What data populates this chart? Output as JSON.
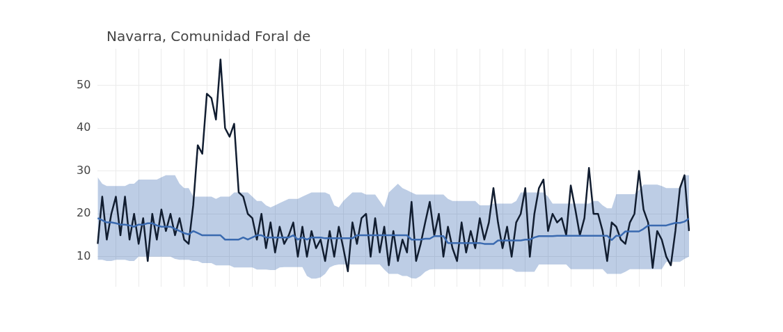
{
  "chart_data": {
    "type": "line",
    "title": "Navarra, Comunidad Foral de",
    "categories": [
      null,
      null,
      null,
      null,
      null,
      null,
      null,
      null,
      null,
      null,
      null,
      null,
      null,
      null,
      null,
      null,
      null,
      null,
      null,
      null,
      null,
      null,
      null,
      null,
      null,
      null,
      null,
      null,
      null,
      null,
      null,
      null,
      null,
      null,
      null,
      null,
      null,
      null,
      null,
      null,
      null,
      null,
      null,
      null,
      null,
      null,
      null,
      null,
      null,
      null,
      null,
      null,
      null,
      null,
      null,
      null,
      null,
      null,
      null,
      null,
      null,
      null,
      null,
      null,
      null,
      null,
      null,
      null,
      null,
      null,
      null,
      null,
      null,
      null,
      null,
      null,
      null,
      null,
      null,
      null,
      null,
      null,
      null,
      null,
      null,
      null,
      null,
      null,
      null,
      null,
      null,
      null,
      null,
      null,
      null,
      null,
      null,
      null,
      null,
      null,
      null,
      null,
      null,
      null,
      null,
      null,
      null,
      null,
      null,
      null,
      null,
      null,
      null,
      null,
      null,
      null,
      null,
      null,
      null,
      null,
      null,
      null,
      null,
      null,
      null,
      null,
      null,
      null,
      null,
      null,
      null
    ],
    "series": [
      {
        "color": "#111d30",
        "values": [
          13,
          24,
          14,
          20,
          24,
          15,
          24,
          14,
          20,
          13,
          19,
          9,
          20,
          14,
          21,
          16,
          20,
          15,
          19,
          14,
          13,
          22,
          36,
          34,
          48,
          47,
          42,
          56,
          40,
          38,
          41,
          25,
          24,
          20,
          19,
          14,
          20,
          12,
          18,
          11,
          17,
          13,
          15,
          18,
          10,
          17,
          10,
          16,
          12,
          14,
          9,
          16,
          10,
          17,
          12,
          6.6,
          18,
          13,
          19,
          20,
          10,
          19,
          11,
          17,
          8,
          16,
          9,
          14,
          11,
          22.8,
          9,
          13,
          18,
          22.8,
          15,
          20,
          10,
          17,
          12,
          9,
          18,
          11,
          16,
          12,
          19,
          14,
          18,
          26,
          18,
          12,
          17,
          10,
          18,
          20,
          26,
          10,
          20,
          26,
          28,
          16,
          20,
          18,
          19,
          15,
          26.6,
          21,
          15,
          19,
          30.7,
          20,
          20,
          16,
          9,
          18,
          17,
          14,
          13,
          18,
          20,
          30,
          21,
          18,
          7.4,
          16,
          14,
          10,
          8,
          16,
          26,
          29,
          16
        ]
      },
      {
        "color": "#3a6ab0",
        "values": [
          19,
          18.5,
          18,
          18,
          17.8,
          17.5,
          17.5,
          17.3,
          17,
          17.5,
          17.5,
          17.8,
          17.8,
          17.3,
          17,
          17,
          17,
          16.5,
          16,
          15.5,
          15.2,
          16,
          15.5,
          15,
          15,
          15,
          15,
          15,
          14,
          14,
          14,
          14,
          14.5,
          14,
          14.5,
          15,
          15,
          14.5,
          14.5,
          14.5,
          14.5,
          14.5,
          14.5,
          15,
          14,
          14.5,
          14,
          14.5,
          14.5,
          14.5,
          14.3,
          14.3,
          14.3,
          14.3,
          14.3,
          14.3,
          14.3,
          15,
          15,
          15,
          15,
          15,
          15,
          15,
          15,
          15,
          15,
          15,
          15,
          14,
          14,
          14,
          14.2,
          14.2,
          14.8,
          14.8,
          14.8,
          13.2,
          13.2,
          13.2,
          13.2,
          13.2,
          13.2,
          13.2,
          13.2,
          13,
          13,
          13,
          13.8,
          13.8,
          13.8,
          13.8,
          13.8,
          13.8,
          14,
          14,
          14.5,
          14.8,
          14.8,
          14.8,
          14.8,
          14.9,
          14.9,
          14.9,
          14.9,
          14.9,
          14.9,
          14.9,
          14.9,
          14.9,
          14.9,
          14.9,
          14.9,
          13.9,
          14.9,
          14.9,
          15.9,
          15.9,
          15.9,
          15.9,
          16.5,
          17.3,
          17.3,
          17.3,
          17.3,
          17.3,
          17.6,
          17.9,
          17.9,
          18.2,
          18.9
        ],
        "upper": [
          28.5,
          27,
          26.5,
          26.5,
          26.5,
          26.5,
          26.5,
          27,
          27,
          28,
          28,
          28,
          28,
          28,
          28.5,
          29,
          29,
          29,
          27,
          26,
          26,
          24,
          24,
          24,
          24,
          24,
          23.5,
          24,
          24,
          24,
          25,
          25,
          25,
          25,
          24,
          23,
          23,
          22,
          21.5,
          22,
          22.5,
          23,
          23.5,
          23.5,
          23.5,
          24,
          24.5,
          25,
          25,
          25,
          25,
          24.5,
          22,
          21.5,
          23,
          24,
          25,
          25,
          25,
          24.5,
          24.5,
          24.5,
          23,
          21.5,
          25,
          26,
          27,
          26,
          25.5,
          25,
          24.5,
          24.5,
          24.5,
          24.5,
          24.5,
          24.5,
          24.5,
          23.5,
          23,
          23,
          23,
          23,
          23,
          23,
          22,
          22,
          22,
          22.4,
          22.4,
          22.4,
          22.4,
          22.4,
          23,
          25,
          25,
          25,
          25,
          25,
          25,
          24,
          22.4,
          22.4,
          22.4,
          22.4,
          22.4,
          22.4,
          22.4,
          22.4,
          22.4,
          23,
          23,
          22,
          21.3,
          21.3,
          24.6,
          24.6,
          24.6,
          24.6,
          24.6,
          25.5,
          26.8,
          26.8,
          26.8,
          26.8,
          26.5,
          26,
          26,
          26,
          26,
          29,
          29
        ],
        "lower": [
          9.3,
          9.3,
          9,
          9,
          9.3,
          9.3,
          9.3,
          9,
          9,
          10,
          10,
          10,
          10,
          10,
          10,
          10,
          10,
          9.5,
          9.3,
          9.3,
          9.3,
          9,
          9,
          8.5,
          8.5,
          8.5,
          8,
          8,
          8,
          8,
          7.5,
          7.5,
          7.5,
          7.5,
          7.5,
          7,
          7,
          7,
          6.9,
          6.9,
          7.5,
          7.6,
          7.6,
          7.6,
          7.6,
          7.6,
          5.5,
          4.9,
          4.9,
          5.2,
          6,
          7.5,
          8,
          8.2,
          8.2,
          8.2,
          8.2,
          8.2,
          8.2,
          8.2,
          8.2,
          8.2,
          8.2,
          7,
          6,
          6,
          6,
          5.5,
          5.5,
          5,
          4.9,
          5.5,
          6.5,
          7,
          7.1,
          7.1,
          7.1,
          7.1,
          7.1,
          7.1,
          7.1,
          7.1,
          7.1,
          7.1,
          7.1,
          7.1,
          7.1,
          7.1,
          7.1,
          7.1,
          7.1,
          7.1,
          6.5,
          6.5,
          6.5,
          6.5,
          6.5,
          8.2,
          8.2,
          8.2,
          8.2,
          8.2,
          8.2,
          8.2,
          7.1,
          7.1,
          7.1,
          7.1,
          7.1,
          7.1,
          7.1,
          7.1,
          6,
          6,
          6,
          6,
          6.5,
          7.1,
          7.1,
          7.1,
          7.1,
          7.1,
          7.1,
          7.1,
          7.1,
          8.8,
          8.8,
          8.8,
          8.8,
          9.5,
          10
        ]
      }
    ],
    "ylim": [
      3,
      58.5
    ],
    "yticks": [
      10,
      20,
      30,
      40,
      50
    ],
    "grid": true,
    "tick_labels": "y",
    "legend": false,
    "marker": "none",
    "line_style": "solid"
  }
}
